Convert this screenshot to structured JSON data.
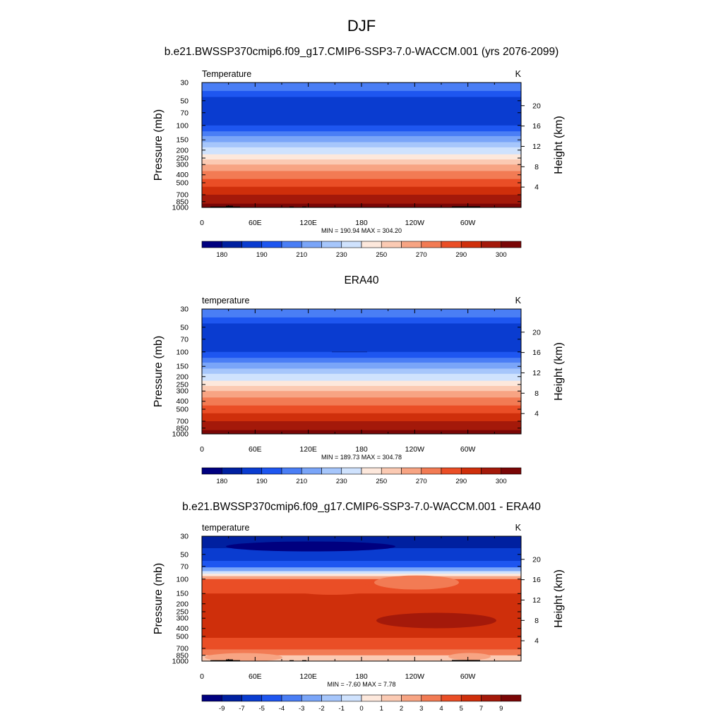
{
  "figure": {
    "title": "DJF",
    "subtitle": "b.e21.BWSSP370cmip6.f09_g17.CMIP6-SSP3-7.0-WACCM.001 (yrs 2076-2099)"
  },
  "chart_data": [
    {
      "type": "heatmap",
      "panel_title": "",
      "left_label": "Temperature",
      "right_label": "K",
      "ylabel": "Pressure (mb)",
      "ylabel_right": "Height (km)",
      "x_ticks": [
        "0",
        "60E",
        "120E",
        "180",
        "120W",
        "60W"
      ],
      "y_ticks": [
        "30",
        "50",
        "70",
        "100",
        "150",
        "200",
        "250",
        "300",
        "400",
        "500",
        "700",
        "850",
        "1000"
      ],
      "y_ticks_right": [
        "20",
        "16",
        "12",
        "8",
        "4"
      ],
      "stats": "MIN = 190.94  MAX = 304.20",
      "min": 190.94,
      "max": 304.2,
      "colorbar_levels": [
        "180",
        "190",
        "210",
        "230",
        "250",
        "270",
        "290",
        "300"
      ],
      "colorbar_colors": [
        "#00007f",
        "#0020a0",
        "#0a3cd0",
        "#1e56f0",
        "#4a7ef5",
        "#7aa5f8",
        "#a6c6fb",
        "#cfe2fd",
        "#fde8dc",
        "#fbcab3",
        "#f7a483",
        "#f27b54",
        "#ea4e26",
        "#cf2f0b",
        "#a4190a",
        "#7a0606"
      ]
    },
    {
      "type": "heatmap",
      "panel_title": "ERA40",
      "left_label": "temperature",
      "right_label": "K",
      "ylabel": "Pressure (mb)",
      "ylabel_right": "Height (km)",
      "x_ticks": [
        "0",
        "60E",
        "120E",
        "180",
        "120W",
        "60W"
      ],
      "y_ticks": [
        "30",
        "50",
        "70",
        "100",
        "150",
        "200",
        "250",
        "300",
        "400",
        "500",
        "700",
        "850",
        "1000"
      ],
      "y_ticks_right": [
        "20",
        "16",
        "12",
        "8",
        "4"
      ],
      "stats": "MIN = 189.73  MAX = 304.78",
      "min": 189.73,
      "max": 304.78,
      "colorbar_levels": [
        "180",
        "190",
        "210",
        "230",
        "250",
        "270",
        "290",
        "300"
      ],
      "colorbar_colors": [
        "#00007f",
        "#0020a0",
        "#0a3cd0",
        "#1e56f0",
        "#4a7ef5",
        "#7aa5f8",
        "#a6c6fb",
        "#cfe2fd",
        "#fde8dc",
        "#fbcab3",
        "#f7a483",
        "#f27b54",
        "#ea4e26",
        "#cf2f0b",
        "#a4190a",
        "#7a0606"
      ]
    },
    {
      "type": "heatmap",
      "panel_title": "b.e21.BWSSP370cmip6.f09_g17.CMIP6-SSP3-7.0-WACCM.001 - ERA40",
      "left_label": "temperature",
      "right_label": "K",
      "ylabel": "Pressure (mb)",
      "ylabel_right": "Height (km)",
      "x_ticks": [
        "0",
        "60E",
        "120E",
        "180",
        "120W",
        "60W"
      ],
      "y_ticks": [
        "30",
        "50",
        "70",
        "100",
        "150",
        "200",
        "250",
        "300",
        "400",
        "500",
        "700",
        "850",
        "1000"
      ],
      "y_ticks_right": [
        "20",
        "16",
        "12",
        "8",
        "4"
      ],
      "stats": "MIN =  -7.60  MAX =   7.78",
      "min": -7.6,
      "max": 7.78,
      "colorbar_levels": [
        "-9",
        "-7",
        "-5",
        "-4",
        "-3",
        "-2",
        "-1",
        "0",
        "1",
        "2",
        "3",
        "4",
        "5",
        "7",
        "9"
      ],
      "colorbar_colors": [
        "#00007f",
        "#0020a0",
        "#0a3cd0",
        "#1e56f0",
        "#4a7ef5",
        "#7aa5f8",
        "#a6c6fb",
        "#cfe2fd",
        "#fde8dc",
        "#fbcab3",
        "#f7a483",
        "#f27b54",
        "#ea4e26",
        "#cf2f0b",
        "#a4190a",
        "#7a0606"
      ]
    }
  ]
}
